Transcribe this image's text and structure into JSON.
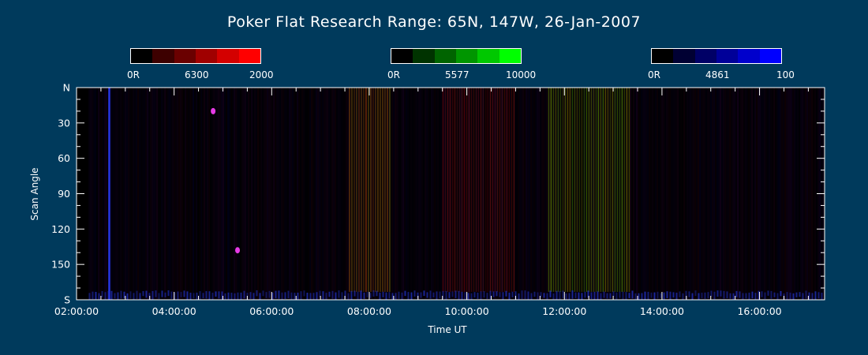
{
  "title": "Poker Flat Research Range: 65N, 147W, 26-Jan-2007",
  "colorbars": [
    {
      "min_label": "0R",
      "mid_label": "6300",
      "max_label": "2000",
      "colors": [
        "#000000",
        "#3d0000",
        "#6a0000",
        "#a00000",
        "#d40000",
        "#ff0000"
      ]
    },
    {
      "min_label": "0R",
      "mid_label": "5577",
      "max_label": "10000",
      "colors": [
        "#000000",
        "#003300",
        "#006400",
        "#009600",
        "#00c800",
        "#00ff00"
      ]
    },
    {
      "min_label": "0R",
      "mid_label": "4861",
      "max_label": "100",
      "colors": [
        "#000000",
        "#000033",
        "#000066",
        "#000099",
        "#0000cc",
        "#0000ff"
      ]
    }
  ],
  "chart_data": {
    "type": "heatmap",
    "title": "Poker Flat Research Range: 65N, 147W, 26-Jan-2007",
    "xlabel": "Time UT",
    "ylabel": "Scan Angle",
    "x_tick_labels": [
      "02:00:00",
      "04:00:00",
      "06:00:00",
      "08:00:00",
      "10:00:00",
      "12:00:00",
      "14:00:00",
      "16:00:00"
    ],
    "y_tick_labels": [
      "N",
      "30",
      "60",
      "90",
      "120",
      "150",
      "S"
    ],
    "xlim": [
      "02:00:00",
      "17:20:00"
    ],
    "ylim": [
      0,
      180
    ],
    "data_start": "02:15:00",
    "features": [
      {
        "kind": "blue vertical line",
        "time": "02:40:00"
      },
      {
        "kind": "red/green band",
        "start": "07:35:00",
        "end": "08:25:00"
      },
      {
        "kind": "red band",
        "start": "09:30:00",
        "end": "11:00:00"
      },
      {
        "kind": "green band",
        "start": "11:40:00",
        "end": "13:20:00"
      },
      {
        "kind": "magenta spot",
        "time": "05:18:00",
        "scan_angle": 138
      },
      {
        "kind": "magenta spot",
        "time": "04:48:00",
        "scan_angle": 20
      }
    ]
  }
}
